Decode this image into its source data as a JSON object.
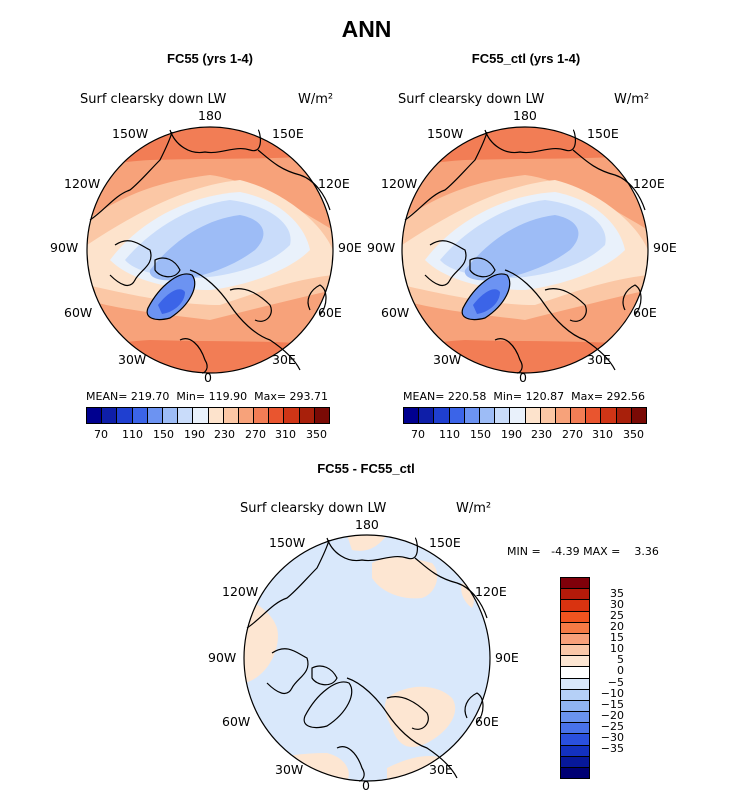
{
  "title": "ANN",
  "colors": {
    "full": [
      "#00008f",
      "#0e1ea8",
      "#1f3fd0",
      "#3b64e8",
      "#6c93f2",
      "#9dbcf6",
      "#c9dcfa",
      "#e9f1fb",
      "#fde3cc",
      "#fbc7a5",
      "#f7a27a",
      "#f27d55",
      "#e9552f",
      "#cf3516",
      "#a8200b",
      "#7a0a05"
    ],
    "diff": [
      "#80000a",
      "#b31a0a",
      "#d93310",
      "#f0541f",
      "#f57a45",
      "#f8a07a",
      "#fac7a8",
      "#fde6d2",
      "#ffffff",
      "#d9e8fb",
      "#b5d0f7",
      "#8fb3f2",
      "#6a93ee",
      "#4872ea",
      "#2a50de",
      "#1331bf",
      "#07189a",
      "#000073"
    ]
  },
  "panels": [
    {
      "title": "FC55 (yrs 1-4)",
      "variable": "Surf clearsky down LW",
      "units": "W/m²",
      "stats": "MEAN= 219.70  Min= 119.90  Max= 293.71",
      "lon_labels": [
        "180",
        "150E",
        "120E",
        "90E",
        "60E",
        "30E",
        "0",
        "30W",
        "60W",
        "90W",
        "120W",
        "150W"
      ],
      "colorbar_ticks": [
        "70",
        "110",
        "150",
        "190",
        "230",
        "270",
        "310",
        "350"
      ]
    },
    {
      "title": "FC55_ctl (yrs 1-4)",
      "variable": "Surf clearsky down LW",
      "units": "W/m²",
      "stats": "MEAN= 220.58  Min= 120.87  Max= 292.56",
      "lon_labels": [
        "180",
        "150E",
        "120E",
        "90E",
        "60E",
        "30E",
        "0",
        "30W",
        "60W",
        "90W",
        "120W",
        "150W"
      ],
      "colorbar_ticks": [
        "70",
        "110",
        "150",
        "190",
        "230",
        "270",
        "310",
        "350"
      ]
    },
    {
      "title": "FC55 - FC55_ctl",
      "variable": "Surf clearsky down LW",
      "units": "W/m²",
      "stats": "MIN =   -4.39 MAX =    3.36",
      "lon_labels": [
        "180",
        "150E",
        "120E",
        "90E",
        "60E",
        "30E",
        "0",
        "30W",
        "60W",
        "90W",
        "120W",
        "150W"
      ],
      "colorbar_ticks": [
        "35",
        "30",
        "25",
        "20",
        "15",
        "10",
        "5",
        "0",
        "−5",
        "−10",
        "−15",
        "−20",
        "−25",
        "−30",
        "−35"
      ]
    }
  ]
}
